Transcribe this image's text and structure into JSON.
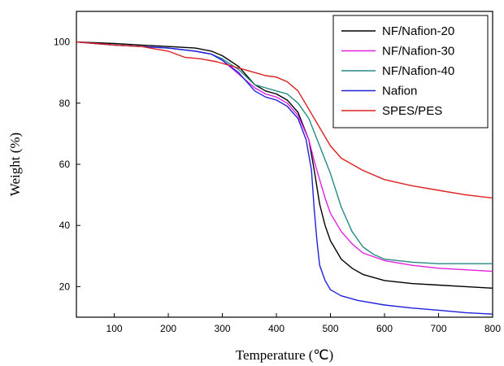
{
  "chart_data": {
    "type": "line",
    "title": "",
    "xlabel": "Temperature (℃)",
    "ylabel": "Weight (%)",
    "xlim": [
      30,
      800
    ],
    "ylim": [
      10,
      110
    ],
    "xticks": [
      100,
      200,
      300,
      400,
      500,
      600,
      700,
      800
    ],
    "yticks": [
      20,
      40,
      60,
      80,
      100
    ],
    "grid": false,
    "legend_position": "top-right",
    "series": [
      {
        "name": "NF/Nafion-20",
        "color": "#000000",
        "points": [
          [
            30,
            100
          ],
          [
            100,
            99.5
          ],
          [
            150,
            99
          ],
          [
            200,
            98.5
          ],
          [
            250,
            98
          ],
          [
            280,
            97
          ],
          [
            300,
            95.5
          ],
          [
            330,
            92
          ],
          [
            360,
            86
          ],
          [
            380,
            84
          ],
          [
            400,
            83
          ],
          [
            420,
            81
          ],
          [
            440,
            77
          ],
          [
            460,
            68
          ],
          [
            470,
            58
          ],
          [
            480,
            47
          ],
          [
            490,
            40
          ],
          [
            500,
            35
          ],
          [
            520,
            29
          ],
          [
            540,
            26
          ],
          [
            560,
            24
          ],
          [
            600,
            22
          ],
          [
            650,
            21
          ],
          [
            700,
            20.5
          ],
          [
            750,
            20
          ],
          [
            800,
            19.5
          ]
        ]
      },
      {
        "name": "NF/Nafion-30",
        "color": "#e020e0",
        "points": [
          [
            30,
            100
          ],
          [
            100,
            99
          ],
          [
            150,
            98.5
          ],
          [
            200,
            98
          ],
          [
            250,
            97
          ],
          [
            280,
            96
          ],
          [
            300,
            94
          ],
          [
            320,
            91
          ],
          [
            340,
            88
          ],
          [
            360,
            85
          ],
          [
            380,
            83
          ],
          [
            400,
            82
          ],
          [
            420,
            80
          ],
          [
            440,
            76
          ],
          [
            460,
            68
          ],
          [
            470,
            61
          ],
          [
            480,
            55
          ],
          [
            490,
            49
          ],
          [
            500,
            44
          ],
          [
            520,
            38
          ],
          [
            540,
            34
          ],
          [
            560,
            31
          ],
          [
            600,
            28.5
          ],
          [
            650,
            27
          ],
          [
            700,
            26
          ],
          [
            750,
            25.5
          ],
          [
            800,
            25
          ]
        ]
      },
      {
        "name": "NF/Nafion-40",
        "color": "#238b82",
        "points": [
          [
            30,
            100
          ],
          [
            100,
            99
          ],
          [
            150,
            98.5
          ],
          [
            200,
            98
          ],
          [
            250,
            97
          ],
          [
            280,
            96
          ],
          [
            300,
            94.5
          ],
          [
            330,
            91
          ],
          [
            360,
            86
          ],
          [
            380,
            85
          ],
          [
            400,
            84
          ],
          [
            420,
            83
          ],
          [
            440,
            80
          ],
          [
            460,
            75
          ],
          [
            480,
            66
          ],
          [
            500,
            57
          ],
          [
            520,
            46
          ],
          [
            540,
            38
          ],
          [
            560,
            33
          ],
          [
            580,
            30.5
          ],
          [
            600,
            29
          ],
          [
            650,
            28
          ],
          [
            700,
            27.5
          ],
          [
            750,
            27.5
          ],
          [
            800,
            27.5
          ]
        ]
      },
      {
        "name": "Nafion",
        "color": "#2020dd",
        "points": [
          [
            30,
            100
          ],
          [
            100,
            99
          ],
          [
            150,
            98.5
          ],
          [
            200,
            98
          ],
          [
            250,
            97
          ],
          [
            280,
            96
          ],
          [
            300,
            94
          ],
          [
            330,
            90
          ],
          [
            360,
            84
          ],
          [
            380,
            82
          ],
          [
            400,
            81
          ],
          [
            420,
            79
          ],
          [
            440,
            75
          ],
          [
            455,
            68
          ],
          [
            465,
            58
          ],
          [
            470,
            45
          ],
          [
            475,
            35
          ],
          [
            480,
            27
          ],
          [
            490,
            22
          ],
          [
            500,
            19
          ],
          [
            520,
            17
          ],
          [
            550,
            15.5
          ],
          [
            600,
            14
          ],
          [
            650,
            13
          ],
          [
            700,
            12.3
          ],
          [
            750,
            11.5
          ],
          [
            800,
            11
          ]
        ]
      },
      {
        "name": "SPES/PES",
        "color": "#dd2020",
        "points": [
          [
            30,
            100
          ],
          [
            100,
            99
          ],
          [
            150,
            98.5
          ],
          [
            200,
            97
          ],
          [
            230,
            95
          ],
          [
            260,
            94.5
          ],
          [
            290,
            93.5
          ],
          [
            320,
            92
          ],
          [
            340,
            91
          ],
          [
            360,
            90
          ],
          [
            380,
            89
          ],
          [
            400,
            88.5
          ],
          [
            420,
            87
          ],
          [
            440,
            84
          ],
          [
            460,
            78
          ],
          [
            480,
            72
          ],
          [
            500,
            66
          ],
          [
            520,
            62
          ],
          [
            540,
            60
          ],
          [
            560,
            58
          ],
          [
            600,
            55
          ],
          [
            650,
            53
          ],
          [
            700,
            51.5
          ],
          [
            750,
            50
          ],
          [
            800,
            49
          ]
        ]
      }
    ]
  }
}
